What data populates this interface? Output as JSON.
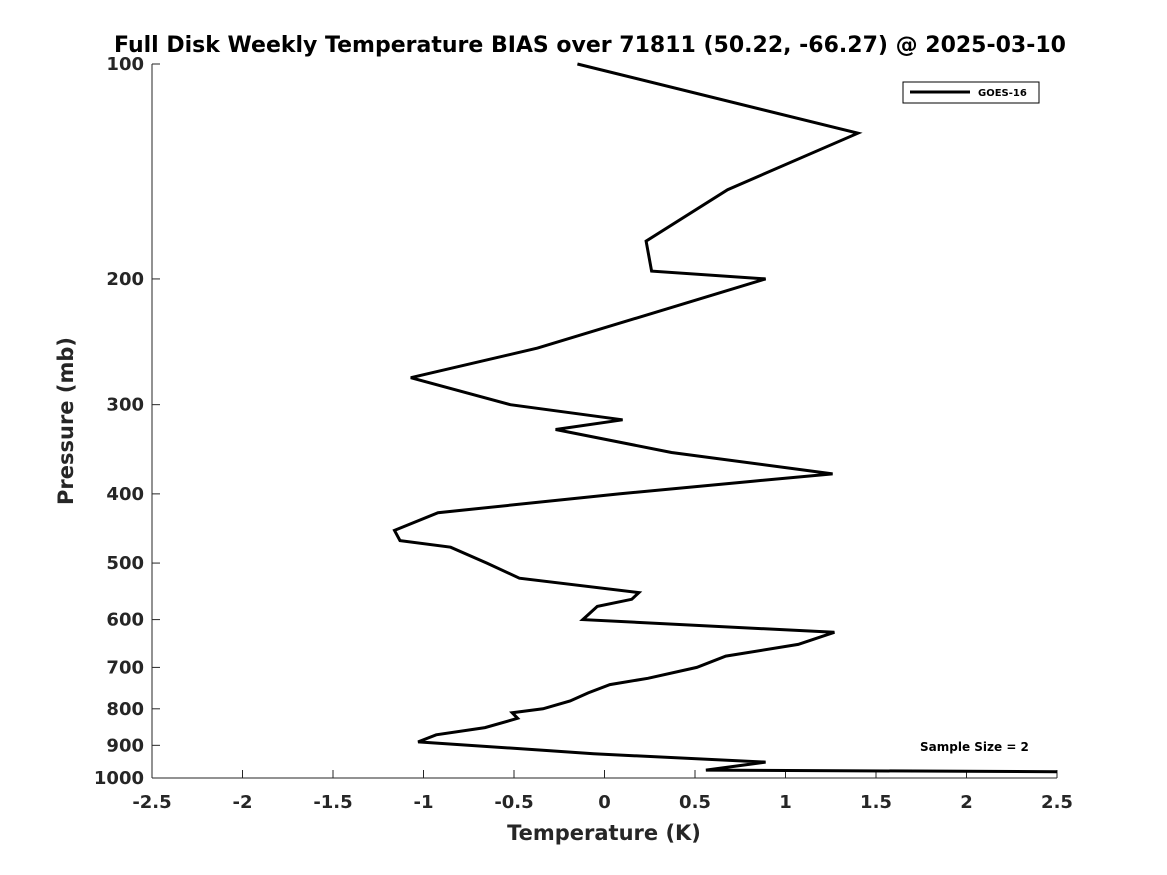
{
  "chart_data": {
    "type": "line",
    "title": "Full Disk Weekly Temperature BIAS over 71811 (50.22, -66.27) @ 2025-03-10",
    "xlabel": "Temperature (K)",
    "ylabel": "Pressure (mb)",
    "xlim": [
      -2.5,
      2.5
    ],
    "ylim": [
      100,
      1000
    ],
    "y_scale": "log",
    "y_reversed": true,
    "xticks": [
      -2.5,
      -2,
      -1.5,
      -1,
      -0.5,
      0,
      0.5,
      1,
      1.5,
      2,
      2.5
    ],
    "xtick_labels": [
      "-2.5",
      "-2",
      "-1.5",
      "-1",
      "-0.5",
      "0",
      "0.5",
      "1",
      "1.5",
      "2",
      "2.5"
    ],
    "yticks": [
      100,
      200,
      300,
      400,
      500,
      600,
      700,
      800,
      900,
      1000
    ],
    "ytick_labels": [
      "100",
      "200",
      "300",
      "400",
      "500",
      "600",
      "700",
      "800",
      "900",
      "1000"
    ],
    "grid": false,
    "legend_position": "top-right",
    "annotation": "Sample Size = 2",
    "series": [
      {
        "name": "GOES-16",
        "color": "#000000",
        "x": [
          -0.15,
          1.4,
          0.68,
          0.23,
          0.26,
          0.89,
          -0.37,
          -1.07,
          -0.52,
          0.1,
          -0.27,
          0.37,
          1.26,
          0.82,
          0.08,
          -0.92,
          -1.16,
          -1.13,
          -0.85,
          -0.65,
          -0.47,
          0.19,
          0.15,
          -0.04,
          -0.12,
          1.27,
          1.07,
          0.67,
          0.51,
          0.24,
          0.03,
          -0.09,
          -0.19,
          -0.34,
          -0.51,
          -0.48,
          -0.66,
          -0.93,
          -1.03,
          -0.32,
          -0.06,
          0.89,
          0.56,
          2.5
        ],
        "y": [
          100,
          125,
          150,
          177,
          195,
          200,
          250,
          275,
          300,
          315,
          325,
          350,
          375,
          384,
          400,
          425,
          450,
          465,
          475,
          500,
          525,
          550,
          562,
          575,
          600,
          625,
          650,
          675,
          700,
          725,
          740,
          760,
          780,
          800,
          810,
          825,
          850,
          870,
          890,
          915,
          925,
          950,
          975,
          980
        ]
      }
    ]
  }
}
